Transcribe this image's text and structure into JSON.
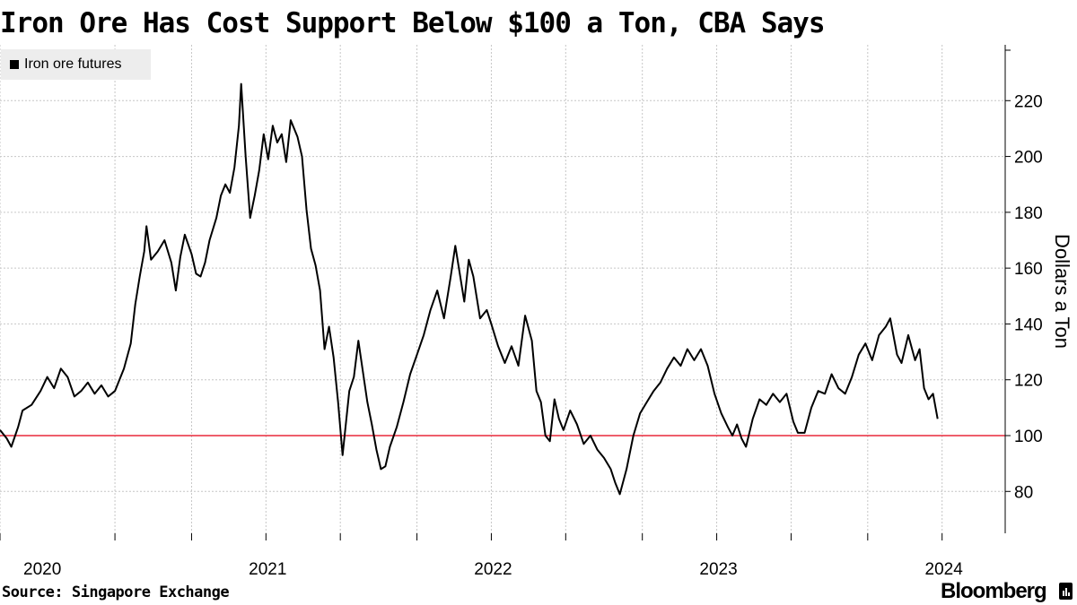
{
  "title": "Iron Ore Has Cost Support Below $100 a Ton, CBA Says",
  "source": "Source: Singapore Exchange",
  "brand": "Bloomberg",
  "chart_data": {
    "type": "line",
    "title": "Iron Ore Has Cost Support Below $100 a Ton, CBA Says",
    "ylabel": "Dollars a Ton",
    "xlabel": "",
    "ylim": [
      65,
      240
    ],
    "xlim": [
      2019.82,
      2024.28
    ],
    "yticks": [
      80,
      100,
      120,
      140,
      160,
      180,
      200,
      220
    ],
    "xtick_labels": [
      {
        "label": "2020",
        "x": 2020.0
      },
      {
        "label": "2021",
        "x": 2021.0
      },
      {
        "label": "2022",
        "x": 2022.0
      },
      {
        "label": "2023",
        "x": 2023.0
      },
      {
        "label": "2024",
        "x": 2024.0
      }
    ],
    "x_gridlines": [
      2019.82,
      2020.33,
      2020.67,
      2021.0,
      2021.33,
      2021.67,
      2022.0,
      2022.33,
      2022.67,
      2023.0,
      2023.33,
      2023.67,
      2024.0
    ],
    "reference_line": {
      "y": 100,
      "color": "#e8293a"
    },
    "legend": [
      "Iron ore futures"
    ],
    "grid": true,
    "series": [
      {
        "name": "Iron ore futures",
        "color": "#000000",
        "points": [
          [
            2019.82,
            102
          ],
          [
            2019.85,
            99
          ],
          [
            2019.87,
            96
          ],
          [
            2019.9,
            103
          ],
          [
            2019.92,
            109
          ],
          [
            2019.96,
            111
          ],
          [
            2020.0,
            116
          ],
          [
            2020.03,
            121
          ],
          [
            2020.06,
            117
          ],
          [
            2020.09,
            124
          ],
          [
            2020.12,
            121
          ],
          [
            2020.15,
            114
          ],
          [
            2020.18,
            116
          ],
          [
            2020.21,
            119
          ],
          [
            2020.24,
            115
          ],
          [
            2020.27,
            118
          ],
          [
            2020.3,
            114
          ],
          [
            2020.33,
            116
          ],
          [
            2020.37,
            124
          ],
          [
            2020.4,
            133
          ],
          [
            2020.42,
            147
          ],
          [
            2020.44,
            157
          ],
          [
            2020.46,
            166
          ],
          [
            2020.47,
            175
          ],
          [
            2020.49,
            163
          ],
          [
            2020.52,
            166
          ],
          [
            2020.55,
            170
          ],
          [
            2020.58,
            162
          ],
          [
            2020.6,
            152
          ],
          [
            2020.62,
            164
          ],
          [
            2020.64,
            172
          ],
          [
            2020.67,
            165
          ],
          [
            2020.69,
            158
          ],
          [
            2020.71,
            157
          ],
          [
            2020.73,
            162
          ],
          [
            2020.75,
            170
          ],
          [
            2020.78,
            178
          ],
          [
            2020.8,
            186
          ],
          [
            2020.82,
            190
          ],
          [
            2020.84,
            187
          ],
          [
            2020.86,
            196
          ],
          [
            2020.88,
            211
          ],
          [
            2020.89,
            226
          ],
          [
            2020.91,
            200
          ],
          [
            2020.93,
            178
          ],
          [
            2020.95,
            186
          ],
          [
            2020.97,
            195
          ],
          [
            2020.99,
            208
          ],
          [
            2021.01,
            199
          ],
          [
            2021.03,
            211
          ],
          [
            2021.05,
            205
          ],
          [
            2021.07,
            208
          ],
          [
            2021.09,
            198
          ],
          [
            2021.11,
            213
          ],
          [
            2021.14,
            207
          ],
          [
            2021.16,
            200
          ],
          [
            2021.18,
            181
          ],
          [
            2021.2,
            167
          ],
          [
            2021.22,
            161
          ],
          [
            2021.24,
            152
          ],
          [
            2021.26,
            131
          ],
          [
            2021.28,
            139
          ],
          [
            2021.3,
            128
          ],
          [
            2021.32,
            112
          ],
          [
            2021.34,
            93
          ],
          [
            2021.37,
            116
          ],
          [
            2021.39,
            121
          ],
          [
            2021.41,
            134
          ],
          [
            2021.43,
            123
          ],
          [
            2021.45,
            112
          ],
          [
            2021.47,
            104
          ],
          [
            2021.49,
            95
          ],
          [
            2021.51,
            88
          ],
          [
            2021.53,
            89
          ],
          [
            2021.55,
            96
          ],
          [
            2021.58,
            103
          ],
          [
            2021.61,
            112
          ],
          [
            2021.64,
            122
          ],
          [
            2021.67,
            129
          ],
          [
            2021.7,
            136
          ],
          [
            2021.73,
            145
          ],
          [
            2021.76,
            152
          ],
          [
            2021.79,
            142
          ],
          [
            2021.82,
            157
          ],
          [
            2021.84,
            168
          ],
          [
            2021.86,
            158
          ],
          [
            2021.88,
            148
          ],
          [
            2021.9,
            163
          ],
          [
            2021.92,
            157
          ],
          [
            2021.95,
            142
          ],
          [
            2021.98,
            145
          ],
          [
            2022.0,
            140
          ],
          [
            2022.03,
            132
          ],
          [
            2022.06,
            126
          ],
          [
            2022.09,
            132
          ],
          [
            2022.12,
            125
          ],
          [
            2022.15,
            143
          ],
          [
            2022.18,
            134
          ],
          [
            2022.2,
            116
          ],
          [
            2022.22,
            112
          ],
          [
            2022.24,
            100
          ],
          [
            2022.26,
            98
          ],
          [
            2022.28,
            113
          ],
          [
            2022.3,
            106
          ],
          [
            2022.32,
            102
          ],
          [
            2022.35,
            109
          ],
          [
            2022.38,
            104
          ],
          [
            2022.41,
            97
          ],
          [
            2022.44,
            100
          ],
          [
            2022.47,
            95
          ],
          [
            2022.5,
            92
          ],
          [
            2022.53,
            88
          ],
          [
            2022.55,
            83
          ],
          [
            2022.57,
            79
          ],
          [
            2022.6,
            88
          ],
          [
            2022.63,
            100
          ],
          [
            2022.66,
            108
          ],
          [
            2022.69,
            112
          ],
          [
            2022.72,
            116
          ],
          [
            2022.75,
            119
          ],
          [
            2022.78,
            124
          ],
          [
            2022.81,
            128
          ],
          [
            2022.84,
            125
          ],
          [
            2022.87,
            131
          ],
          [
            2022.9,
            127
          ],
          [
            2022.93,
            131
          ],
          [
            2022.96,
            125
          ],
          [
            2022.99,
            115
          ],
          [
            2023.02,
            108
          ],
          [
            2023.05,
            103
          ],
          [
            2023.07,
            100
          ],
          [
            2023.09,
            104
          ],
          [
            2023.11,
            99
          ],
          [
            2023.13,
            96
          ],
          [
            2023.16,
            106
          ],
          [
            2023.19,
            113
          ],
          [
            2023.22,
            111
          ],
          [
            2023.25,
            115
          ],
          [
            2023.28,
            112
          ],
          [
            2023.31,
            115
          ],
          [
            2023.34,
            105
          ],
          [
            2023.36,
            101
          ],
          [
            2023.39,
            101
          ],
          [
            2023.42,
            110
          ],
          [
            2023.45,
            116
          ],
          [
            2023.48,
            115
          ],
          [
            2023.51,
            122
          ],
          [
            2023.54,
            117
          ],
          [
            2023.57,
            115
          ],
          [
            2023.6,
            121
          ],
          [
            2023.63,
            129
          ],
          [
            2023.66,
            133
          ],
          [
            2023.69,
            127
          ],
          [
            2023.72,
            136
          ],
          [
            2023.75,
            139
          ],
          [
            2023.77,
            142
          ],
          [
            2023.8,
            129
          ],
          [
            2023.82,
            126
          ],
          [
            2023.85,
            136
          ],
          [
            2023.88,
            127
          ],
          [
            2023.9,
            131
          ],
          [
            2023.92,
            117
          ],
          [
            2023.94,
            113
          ],
          [
            2023.96,
            115
          ],
          [
            2023.98,
            106
          ]
        ]
      }
    ]
  }
}
